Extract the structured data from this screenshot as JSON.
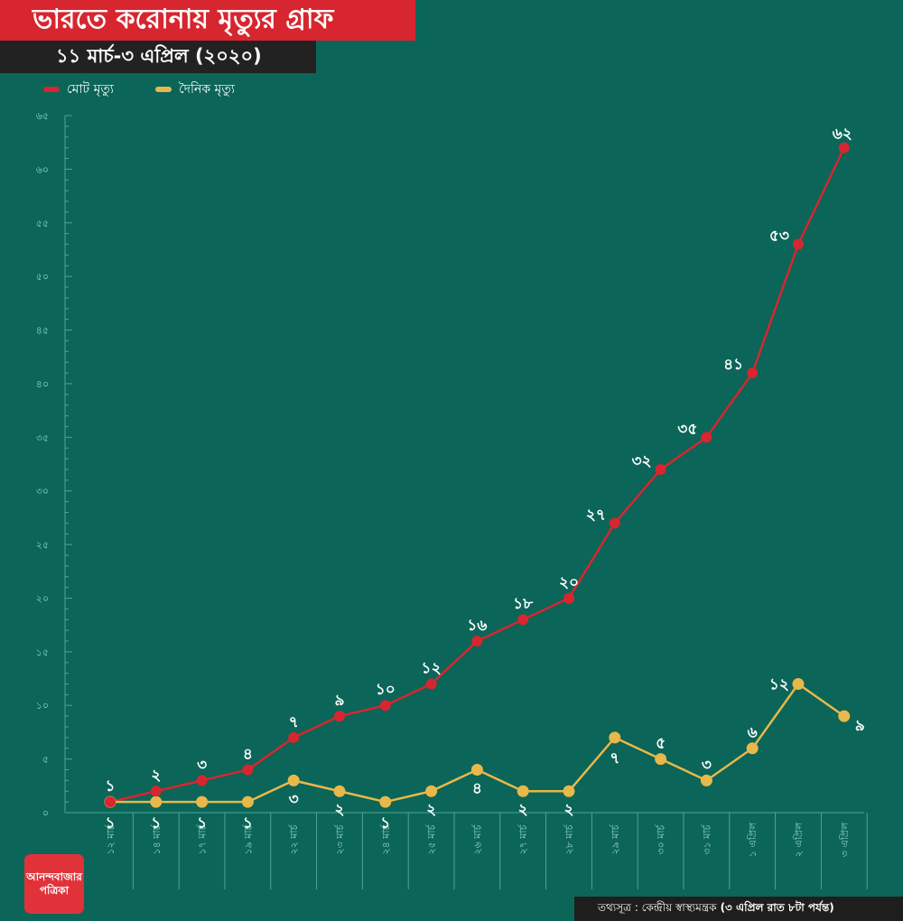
{
  "header": {
    "title": "ভারতে করোনায় মৃত্যুর গ্রাফ",
    "subtitle": "১১ মার্চ-৩ এপ্রিল (২০২০)"
  },
  "legend": [
    {
      "label": "মোট মৃত্যু",
      "color": "#d7262f"
    },
    {
      "label": "দৈনিক মৃত্যু",
      "color": "#e8b84a"
    }
  ],
  "logo": {
    "line1": "আনন্দবাজার",
    "line2": "পত্রিকা"
  },
  "source": {
    "label": "তথ্যসূত্র : কেন্দ্রীয় স্বাস্থ্যমন্ত্রক",
    "note": "(৩ এপ্রিল রাত ৮টা পর্যন্ত)"
  },
  "chart_data": {
    "type": "line",
    "ylim": [
      0,
      65
    ],
    "yticks": [
      0,
      5,
      10,
      15,
      20,
      25,
      30,
      35,
      40,
      45,
      50,
      55,
      60,
      65
    ],
    "ytick_labels": [
      "০",
      "৫",
      "১০",
      "১৫",
      "২০",
      "২৫",
      "৩০",
      "৩৫",
      "৪০",
      "৪৫",
      "৫০",
      "৫৫",
      "৬০",
      "৬৫"
    ],
    "categories": [
      "১২ মার্চ",
      "১৪ মার্চ",
      "১৭ মার্চ",
      "১৯ মার্চ",
      "২২ মার্চ",
      "২৩ মার্চ",
      "২৪ মার্চ",
      "২৫ মার্চ",
      "২৬ মার্চ",
      "২৭ মার্চ",
      "২৮ মার্চ",
      "২৯ মার্চ",
      "৩০ মার্চ",
      "৩১ মার্চ",
      "১ এপ্রিল",
      "২ এপ্রিল",
      "৩ এপ্রিল"
    ],
    "series": [
      {
        "name": "মোট মৃত্যু",
        "color": "#d7262f",
        "values": [
          1,
          2,
          3,
          4,
          7,
          9,
          10,
          12,
          16,
          18,
          20,
          27,
          32,
          35,
          41,
          53,
          62
        ],
        "labels": [
          "১",
          "২",
          "৩",
          "৪",
          "৭",
          "৯",
          "১০",
          "১২",
          "১৬",
          "১৮",
          "২০",
          "২৭",
          "৩২",
          "৩৫",
          "৪১",
          "৫৩",
          "৬২"
        ]
      },
      {
        "name": "দৈনিক মৃত্যু",
        "color": "#e8b84a",
        "values": [
          1,
          1,
          1,
          1,
          3,
          2,
          1,
          2,
          4,
          2,
          2,
          7,
          5,
          3,
          6,
          12,
          9
        ],
        "labels": [
          "১",
          "১",
          "১",
          "১",
          "৩",
          "২",
          "১",
          "২",
          "৪",
          "২",
          "২",
          "৭",
          "৫",
          "৩",
          "৬",
          "১২",
          "৯"
        ]
      }
    ]
  }
}
